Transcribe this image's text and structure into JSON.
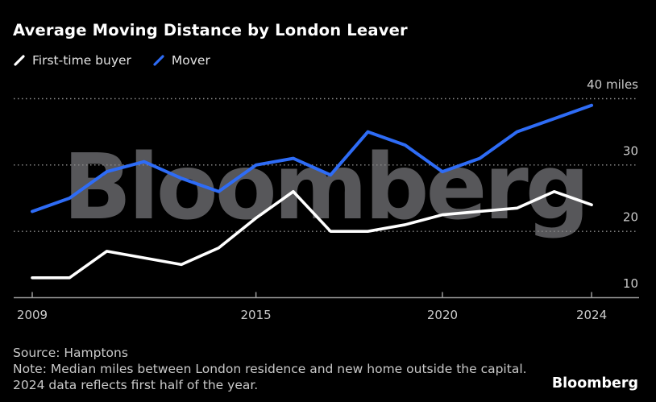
{
  "header": {
    "title": "Average Moving Distance by London Leaver"
  },
  "legend": {
    "items": [
      {
        "label": "First-time buyer",
        "color": "#ffffff"
      },
      {
        "label": "Mover",
        "color": "#2e6cf6"
      }
    ]
  },
  "watermark": "Bloomberg",
  "chart_data": {
    "type": "line",
    "x": [
      2009,
      2010,
      2011,
      2012,
      2013,
      2014,
      2015,
      2016,
      2017,
      2018,
      2019,
      2020,
      2021,
      2022,
      2023,
      2024
    ],
    "series": [
      {
        "name": "Mover",
        "color": "#2e6cf6",
        "stroke_width": 4,
        "values": [
          23,
          25,
          29,
          30.5,
          28,
          26,
          30,
          31,
          28.5,
          35,
          33,
          29,
          31,
          35,
          37,
          39
        ]
      },
      {
        "name": "First-time buyer",
        "color": "#ffffff",
        "stroke_width": 3.6,
        "values": [
          13,
          13,
          17,
          16,
          15,
          17.5,
          22,
          26,
          20,
          20,
          21,
          22.5,
          23,
          23.5,
          26,
          24
        ]
      }
    ],
    "title": "Average Moving Distance by London Leaver",
    "ylabel": "miles",
    "ylim": [
      10,
      42
    ],
    "yticks": [
      10,
      20,
      30,
      40
    ],
    "ytick_labels": [
      "10",
      "20",
      "30",
      "40 miles"
    ],
    "xticks": [
      2009,
      2015,
      2020,
      2024
    ],
    "xtick_labels": [
      "2009",
      "2015",
      "2020",
      "2024"
    ],
    "grid": "horizontal-dotted",
    "legend_position": "top-left"
  },
  "footer": {
    "source": "Source: Hamptons",
    "note_line1": "Note: Median miles between London residence and new home outside the capital.",
    "note_line2": "2024 data reflects first half of the year.",
    "logo": "Bloomberg"
  }
}
